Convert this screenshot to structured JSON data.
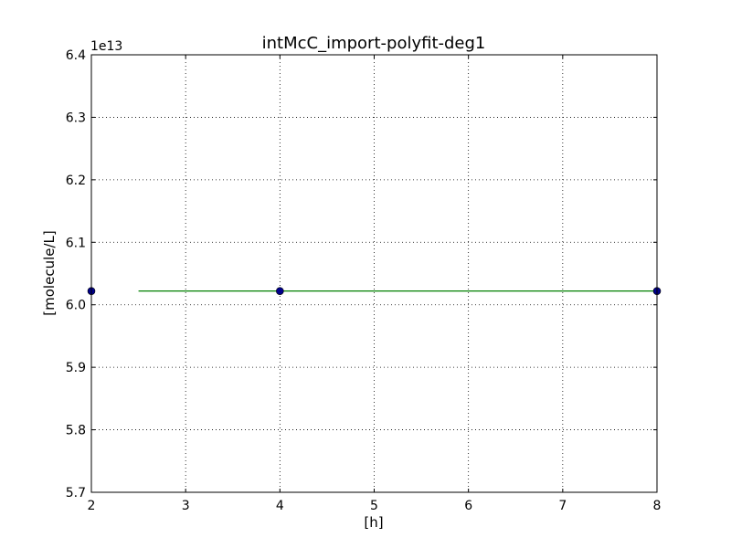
{
  "chart_data": {
    "type": "scatter",
    "title": "intMcC_import-polyfit-deg1",
    "xlabel": "[h]",
    "ylabel": "[molecule/L]",
    "y_offset_label": "1e13",
    "xlim": [
      2,
      8
    ],
    "ylim": [
      5.7,
      6.4
    ],
    "x_ticks": [
      2,
      3,
      4,
      5,
      6,
      7,
      8
    ],
    "y_ticks": [
      5.7,
      5.8,
      5.9,
      6.0,
      6.1,
      6.2,
      6.3,
      6.4
    ],
    "x_tick_labels": [
      "2",
      "3",
      "4",
      "5",
      "6",
      "7",
      "8"
    ],
    "y_tick_labels": [
      "5.7",
      "5.8",
      "5.9",
      "6.0",
      "6.1",
      "6.2",
      "6.3",
      "6.4"
    ],
    "grid": true,
    "series": [
      {
        "kind": "points",
        "color": "#00008b",
        "x": [
          2,
          4,
          8
        ],
        "y": [
          6.022,
          6.022,
          6.022
        ]
      },
      {
        "kind": "line",
        "color": "#008000",
        "x": [
          2.5,
          8
        ],
        "y": [
          6.022,
          6.022
        ]
      }
    ]
  }
}
